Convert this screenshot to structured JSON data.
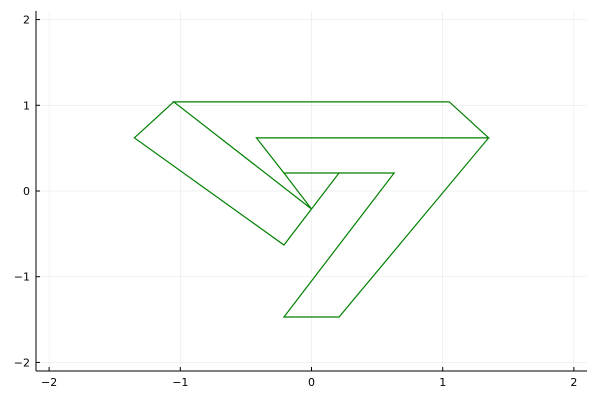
{
  "chart_data": {
    "type": "line",
    "title": "",
    "xlabel": "",
    "ylabel": "",
    "xlim": [
      -2.1,
      2.1
    ],
    "ylim": [
      -2.1,
      2.1
    ],
    "grid": true,
    "legend": "none",
    "x_ticks": [
      -2,
      -1,
      0,
      1,
      2
    ],
    "y_ticks": [
      -2,
      -1,
      0,
      1,
      2
    ],
    "x_tick_labels": [
      "−2",
      "−1",
      "0",
      "1",
      "2"
    ],
    "y_tick_labels": [
      "−2",
      "−1",
      "0",
      "1",
      "2"
    ],
    "series": [
      {
        "color": "#008000",
        "x": [
          -1.05,
          1.05,
          1.35,
          -0.42,
          -0.21,
          0.63,
          -0.21,
          0.21,
          1.35,
          1.05,
          -1.05,
          0,
          -0.21,
          0.21,
          -0.21,
          -1.35,
          -1.05
        ],
        "y": [
          1.04,
          1.04,
          0.62,
          0.62,
          0.21,
          0.21,
          -1.47,
          -1.47,
          0.62,
          1.04,
          1.04,
          -0.21,
          0.21,
          0.21,
          -0.63,
          0.62,
          1.04
        ]
      }
    ]
  }
}
